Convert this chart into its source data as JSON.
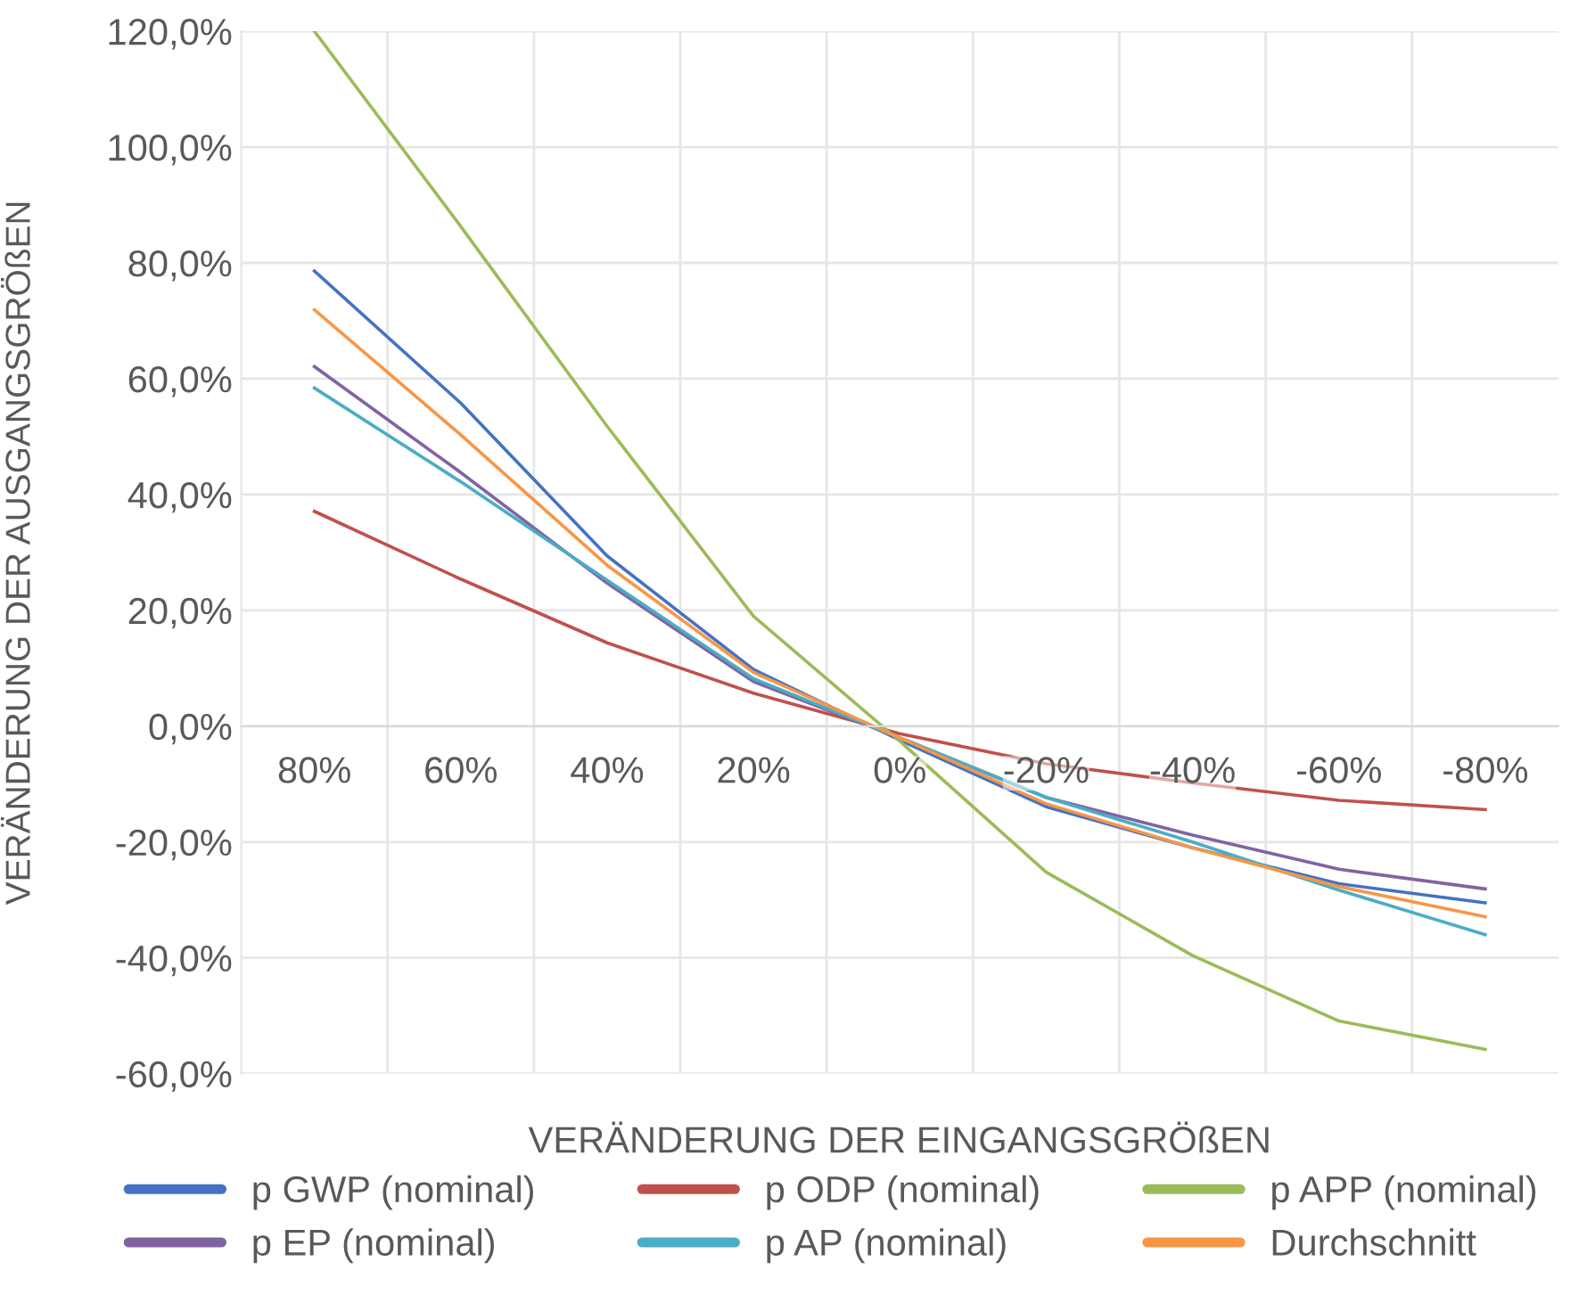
{
  "chart_data": {
    "type": "line",
    "xlabel": "VERÄNDERUNG DER EINGANGSGRÖßEN",
    "ylabel": "VERÄNDERUNG DER AUSGANGSGRÖßEN",
    "categories": [
      "80%",
      "60%",
      "40%",
      "20%",
      "0%",
      "-20%",
      "-40%",
      "-60%",
      "-80%"
    ],
    "ylim": [
      -60,
      120
    ],
    "yticks": [
      {
        "value": -60,
        "label": "-60,0%"
      },
      {
        "value": -40,
        "label": "-40,0%"
      },
      {
        "value": -20,
        "label": "-20,0%"
      },
      {
        "value": 0,
        "label": "0,0%"
      },
      {
        "value": 20,
        "label": "20,0%"
      },
      {
        "value": 40,
        "label": "40,0%"
      },
      {
        "value": 60,
        "label": "60,0%"
      },
      {
        "value": 80,
        "label": "80,0%"
      },
      {
        "value": 100,
        "label": "100,0%"
      },
      {
        "value": 120,
        "label": "120,0%"
      }
    ],
    "grid": true,
    "legend": "bottom",
    "marker": "none",
    "line_style": "solid",
    "series": [
      {
        "name": "p GWP (nominal)",
        "color": "#4472c4",
        "values": [
          78.6,
          55.8,
          29.4,
          9.8,
          -2.4,
          -13.9,
          -21,
          -27.2,
          -30.5
        ]
      },
      {
        "name": "p ODP (nominal)",
        "color": "#c0504d",
        "values": [
          37.1,
          25.4,
          14.4,
          5.7,
          -1.3,
          -6.5,
          -9.8,
          -12.8,
          -14.4
        ]
      },
      {
        "name": "p APP (nominal)",
        "color": "#9bbb59",
        "values": [
          120,
          86.3,
          51.8,
          19,
          -2.6,
          -25.2,
          -39.6,
          -50.9,
          -55.8
        ]
      },
      {
        "name": "p EP (nominal)",
        "color": "#8064a2",
        "values": [
          62.1,
          43.8,
          24.7,
          7.7,
          -2,
          -12.3,
          -18.8,
          -24.7,
          -28.1
        ]
      },
      {
        "name": "p AP (nominal)",
        "color": "#4bacc6",
        "values": [
          58.4,
          42.2,
          25.2,
          8.2,
          -2,
          -12.3,
          -20,
          -28.3,
          -36
        ]
      },
      {
        "name": "Durchschnitt",
        "color": "#f79646",
        "values": [
          71.9,
          50.3,
          27.8,
          9.3,
          -2,
          -13.4,
          -21,
          -27.7,
          -32.9
        ]
      }
    ]
  }
}
